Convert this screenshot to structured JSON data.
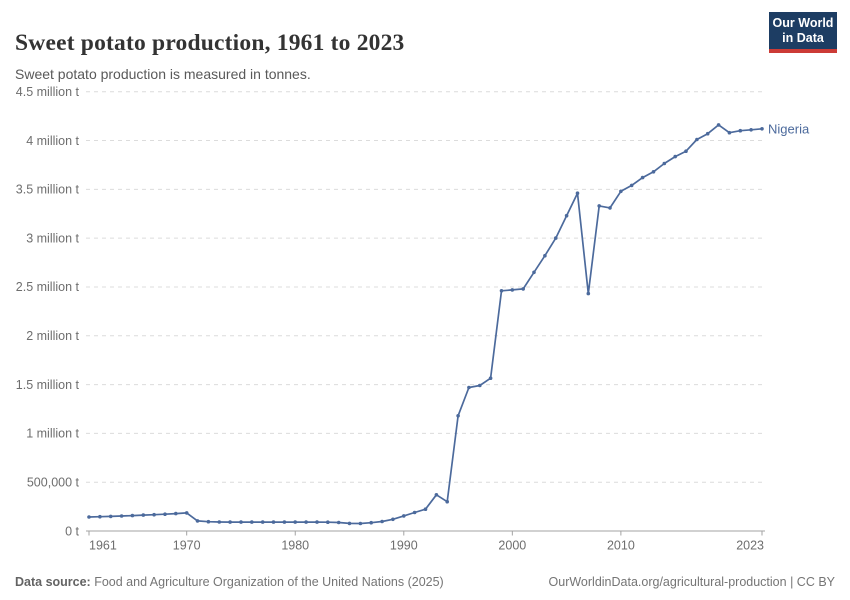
{
  "header": {
    "title": "Sweet potato production, 1961 to 2023",
    "subtitle": "Sweet potato production is measured in tonnes.",
    "logo": {
      "line1": "Our World",
      "line2": "in Data"
    }
  },
  "chart_data": {
    "type": "line",
    "title": "Sweet potato production, 1961 to 2023",
    "ylabel": "",
    "xlabel": "",
    "unit": "tonnes",
    "xlim": [
      1961,
      2023
    ],
    "ylim": [
      0,
      4500000
    ],
    "grid": "horizontal-dashed",
    "legend_position": "end-of-line",
    "years_start": 1961,
    "years_end": 2023,
    "series": [
      {
        "name": "Nigeria",
        "values": [
          143000,
          146000,
          150000,
          154000,
          158000,
          163000,
          167000,
          172000,
          178000,
          185000,
          103000,
          95000,
          92000,
          91000,
          91000,
          91000,
          91000,
          91000,
          91000,
          91000,
          91000,
          91000,
          90000,
          87000,
          78000,
          77000,
          85000,
          97000,
          120000,
          155000,
          190000,
          223000,
          371000,
          300000,
          1180000,
          1470000,
          1490000,
          1565000,
          2460000,
          2470000,
          2480000,
          2650000,
          2820000,
          3000000,
          3230000,
          3460000,
          2432000,
          3330000,
          3310000,
          3480000,
          3540000,
          3620000,
          3680000,
          3765000,
          3835000,
          3890000,
          4010000,
          4070000,
          4160000,
          4080000,
          4100000,
          4110000,
          4120000
        ]
      }
    ],
    "yticks": [
      {
        "value": 0,
        "label": "0 t"
      },
      {
        "value": 500000,
        "label": "500,000 t"
      },
      {
        "value": 1000000,
        "label": "1 million t"
      },
      {
        "value": 1500000,
        "label": "1.5 million t"
      },
      {
        "value": 2000000,
        "label": "2 million t"
      },
      {
        "value": 2500000,
        "label": "2.5 million t"
      },
      {
        "value": 3000000,
        "label": "3 million t"
      },
      {
        "value": 3500000,
        "label": "3.5 million t"
      },
      {
        "value": 4000000,
        "label": "4 million t"
      },
      {
        "value": 4500000,
        "label": "4.5 million t"
      }
    ],
    "xticks": [
      {
        "value": 1961,
        "label": "1961"
      },
      {
        "value": 1970,
        "label": "1970"
      },
      {
        "value": 1980,
        "label": "1980"
      },
      {
        "value": 1990,
        "label": "1990"
      },
      {
        "value": 2000,
        "label": "2000"
      },
      {
        "value": 2010,
        "label": "2010"
      },
      {
        "value": 2023,
        "label": "2023"
      }
    ]
  },
  "footer": {
    "source_prefix": "Data source:",
    "source_text": " Food and Agriculture Organization of the United Nations (2025)",
    "link": "OurWorldinData.org/agricultural-production",
    "separator": " | ",
    "license": "CC BY"
  },
  "colors": {
    "line": "#4c6a9c",
    "entity_label": "#4c6a9c",
    "grid": "#dcdcdc",
    "axis": "#a3a3a3",
    "tick_label": "#6e6e6e",
    "logo_bg": "#1d3d63",
    "logo_accent": "#cc3b36"
  }
}
